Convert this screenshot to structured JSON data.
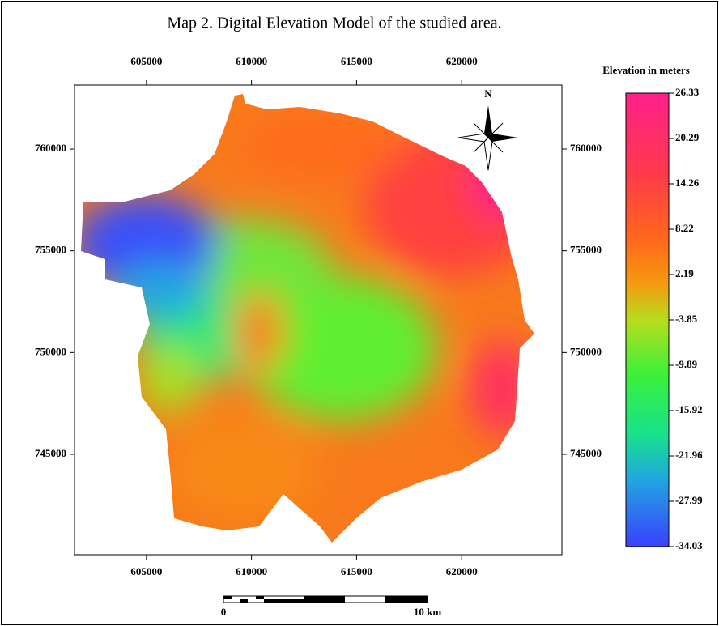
{
  "map": {
    "title": "Map 2. Digital Elevation Model of the studied area.",
    "xlim": [
      601577,
      624770
    ],
    "ylim": [
      740066,
      763144
    ],
    "xticks": [
      605000,
      610000,
      615000,
      620000
    ],
    "yticks": [
      760000,
      755000,
      750000,
      745000
    ],
    "legend": {
      "title": "Elevation in meters",
      "range": [
        -34.03,
        26.33
      ],
      "labels": [
        26.33,
        20.29,
        14.26,
        8.22,
        2.19,
        -3.85,
        -9.89,
        -15.92,
        -21.96,
        -27.99,
        -34.03
      ]
    },
    "north": "N",
    "scale_bar": {
      "start": "0",
      "end": "10 km"
    }
  }
}
